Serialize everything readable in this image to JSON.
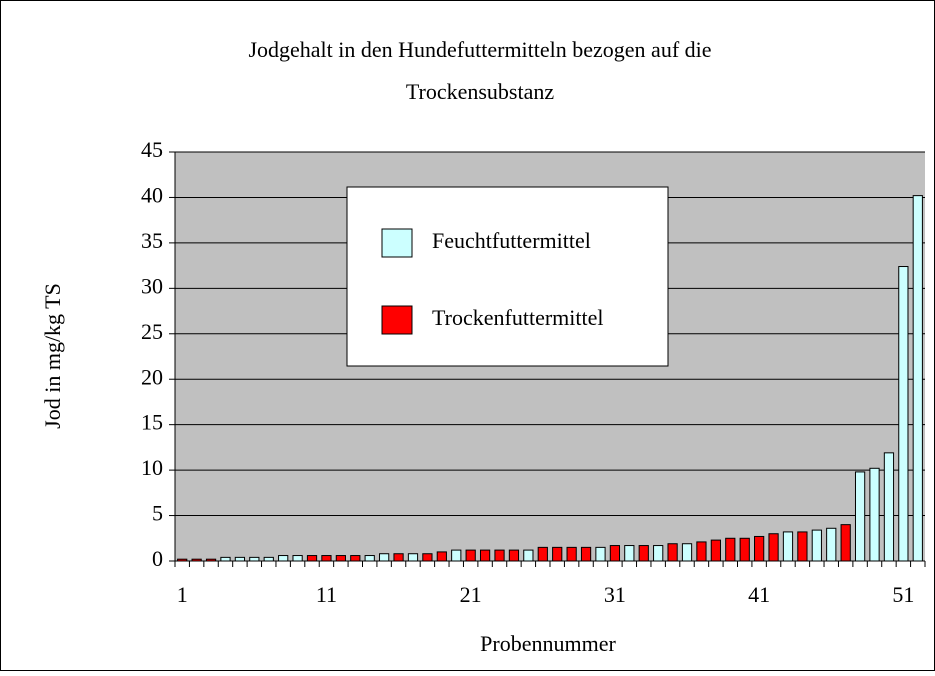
{
  "chart_data": {
    "type": "bar",
    "title": "Jodgehalt in den Hundefuttermitteln bezogen auf die",
    "subtitle": "Trockensubstanz",
    "x_label": "Probennummer",
    "y_label": "Jod in mg/kg TS",
    "categories": [
      "1",
      null,
      null,
      null,
      null,
      null,
      null,
      null,
      null,
      null,
      "11",
      null,
      null,
      null,
      null,
      null,
      null,
      null,
      null,
      null,
      "21",
      null,
      null,
      null,
      null,
      null,
      null,
      null,
      null,
      null,
      "31",
      null,
      null,
      null,
      null,
      null,
      null,
      null,
      null,
      null,
      "41",
      null,
      null,
      null,
      null,
      null,
      null,
      null,
      null,
      null,
      "51",
      null
    ],
    "series": [
      {
        "name": "Feuchtfuttermittel",
        "color": "#ccffff",
        "values": [
          null,
          null,
          null,
          0.4,
          0.4,
          0.4,
          0.4,
          0.6,
          0.6,
          null,
          null,
          null,
          null,
          0.6,
          0.8,
          null,
          0.8,
          null,
          null,
          1.2,
          null,
          null,
          null,
          null,
          1.2,
          null,
          null,
          null,
          null,
          1.5,
          null,
          1.7,
          null,
          1.7,
          null,
          1.9,
          null,
          null,
          null,
          null,
          null,
          null,
          3.2,
          null,
          3.4,
          3.6,
          null,
          9.8,
          10.2,
          11.9,
          32.4,
          40.2
        ]
      },
      {
        "name": "Trockenfuttermittel",
        "color": "#ff0000",
        "values": [
          0.2,
          0.2,
          0.2,
          null,
          null,
          null,
          null,
          null,
          null,
          0.6,
          0.6,
          0.6,
          0.6,
          null,
          null,
          0.8,
          null,
          0.8,
          1.0,
          null,
          1.2,
          1.2,
          1.2,
          1.2,
          null,
          1.5,
          1.5,
          1.5,
          1.5,
          null,
          1.7,
          null,
          1.7,
          null,
          1.9,
          null,
          2.1,
          2.3,
          2.5,
          2.5,
          2.7,
          3.0,
          null,
          3.2,
          null,
          null,
          4.0,
          null,
          null,
          null,
          null,
          null
        ]
      }
    ],
    "ylim": [
      0,
      45
    ],
    "yticks": [
      0,
      5,
      10,
      15,
      20,
      25,
      30,
      35,
      40,
      45
    ],
    "grid": true
  }
}
